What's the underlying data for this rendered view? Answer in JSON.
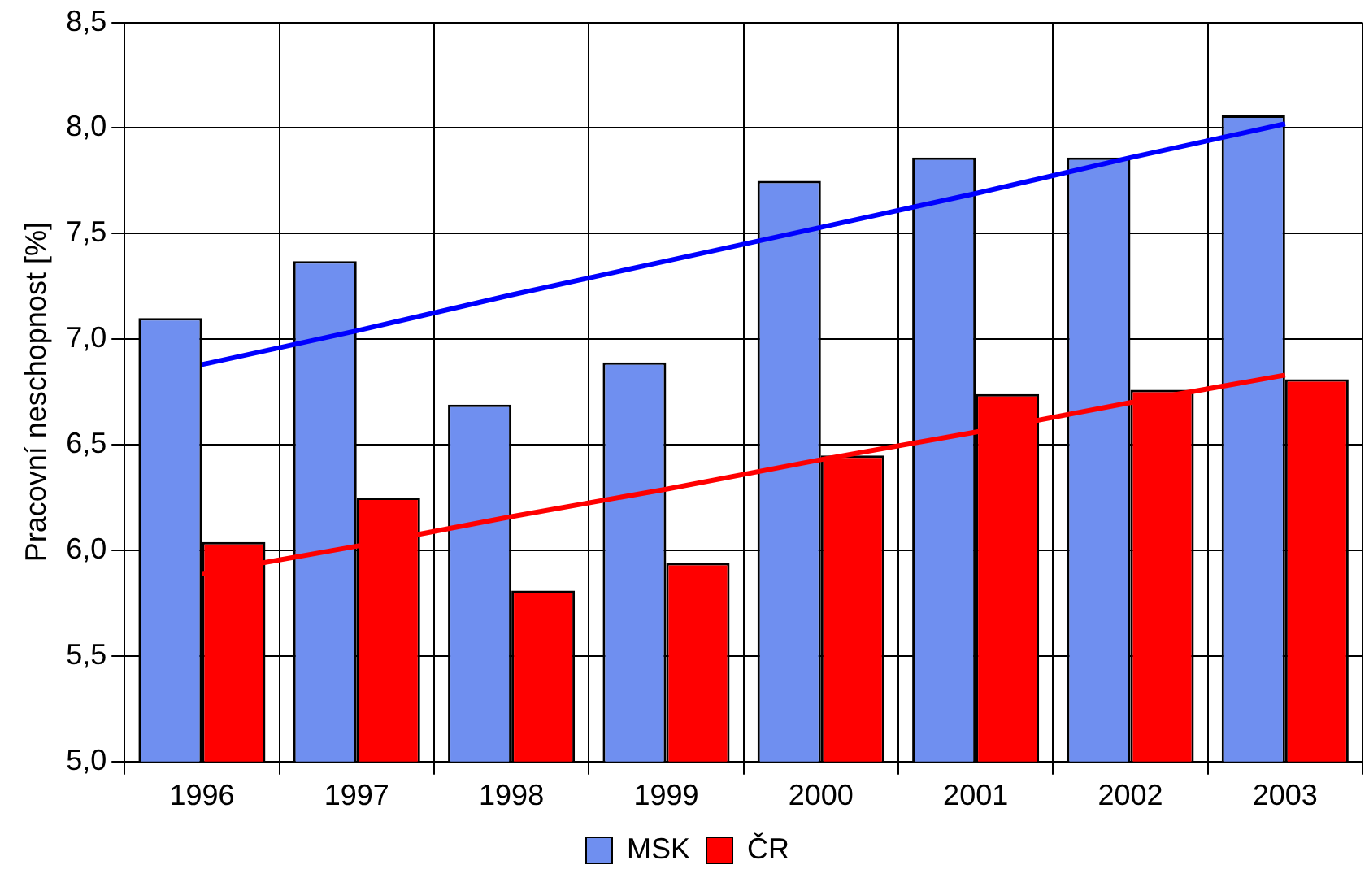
{
  "chart_data": {
    "type": "bar",
    "ylabel": "Pracovní neschopnost [%]",
    "categories": [
      "1996",
      "1997",
      "1998",
      "1999",
      "2000",
      "2001",
      "2002",
      "2003"
    ],
    "series": [
      {
        "name": "MSK",
        "color": "#6f8ff0",
        "values": [
          7.1,
          7.37,
          6.69,
          6.89,
          7.75,
          7.86,
          7.86,
          8.06
        ]
      },
      {
        "name": "ČR",
        "color": "#ff0000",
        "values": [
          6.04,
          6.25,
          5.81,
          5.94,
          6.45,
          6.74,
          6.76,
          6.81
        ]
      },
      {
        "type": "line",
        "color": "#0000ff",
        "values": [
          6.88,
          7.04,
          7.21,
          7.37,
          7.53,
          7.69,
          7.86,
          8.02
        ]
      },
      {
        "type": "line",
        "color": "#ff0000",
        "values": [
          5.89,
          6.02,
          6.16,
          6.29,
          6.43,
          6.56,
          6.7,
          6.83
        ]
      }
    ],
    "ylim": [
      5.0,
      8.5
    ],
    "yticks": [
      {
        "value": 5.0,
        "label": "5,0"
      },
      {
        "value": 5.5,
        "label": "5,5"
      },
      {
        "value": 6.0,
        "label": "6,0"
      },
      {
        "value": 6.5,
        "label": "6,5"
      },
      {
        "value": 7.0,
        "label": "7,0"
      },
      {
        "value": 7.5,
        "label": "7,5"
      },
      {
        "value": 8.0,
        "label": "8,0"
      },
      {
        "value": 8.5,
        "label": "8,5"
      }
    ],
    "grid": true,
    "legend": "bottom"
  }
}
